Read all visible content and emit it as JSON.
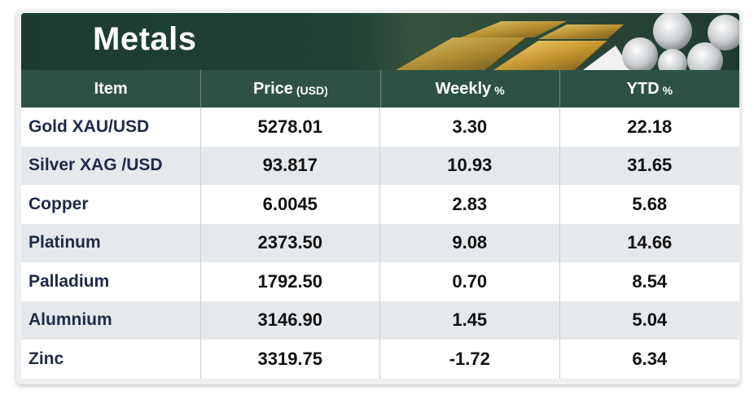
{
  "title": "Metals",
  "header": {
    "item": "Item",
    "price": "Price",
    "price_unit": "(USD)",
    "weekly": "Weekly",
    "weekly_unit": "%",
    "ytd": "YTD",
    "ytd_unit": "%"
  },
  "rows": [
    {
      "item": "Gold XAU/USD",
      "price": "5278.01",
      "weekly": "3.30",
      "ytd": "22.18"
    },
    {
      "item": "Silver XAG /USD",
      "price": "93.817",
      "weekly": "10.93",
      "ytd": "31.65"
    },
    {
      "item": "Copper",
      "price": "6.0045",
      "weekly": "2.83",
      "ytd": "5.68"
    },
    {
      "item": "Platinum",
      "price": "2373.50",
      "weekly": "9.08",
      "ytd": "14.66"
    },
    {
      "item": "Palladium",
      "price": "1792.50",
      "weekly": "0.70",
      "ytd": "8.54"
    },
    {
      "item": "Alumnium",
      "price": "3146.90",
      "weekly": "1.45",
      "ytd": "5.04"
    },
    {
      "item": "Zinc",
      "price": "3319.75",
      "weekly": "-1.72",
      "ytd": "6.34"
    }
  ],
  "colors": {
    "banner": "#1f4135",
    "header": "#2d5244",
    "row_alt": "#e6e9ec",
    "item_text": "#1e2a48"
  },
  "icons": [
    "gold-bars-image",
    "silver-coins-image"
  ]
}
